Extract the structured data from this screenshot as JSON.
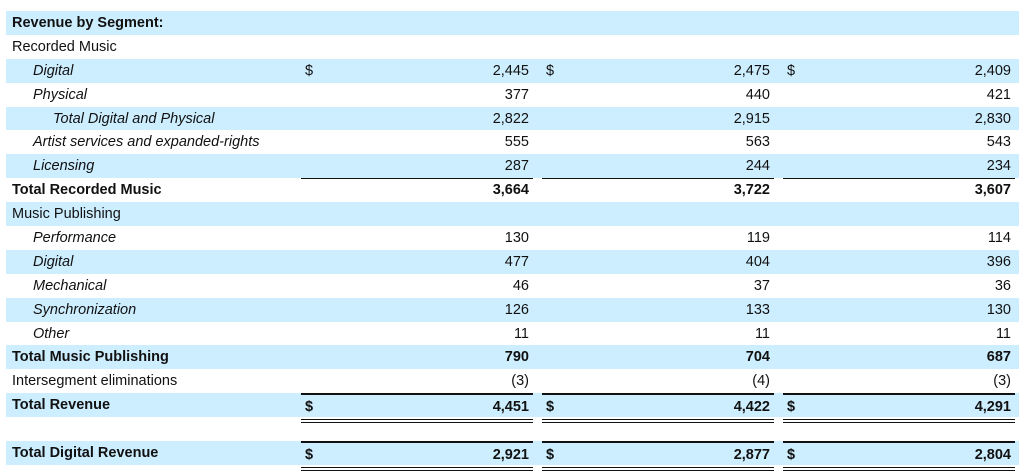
{
  "table": {
    "rows": [
      {
        "label": "Revenue by Segment:",
        "indent": 0,
        "bold": true,
        "shaded": true,
        "values": [
          "",
          "",
          ""
        ],
        "currency": false
      },
      {
        "label": "Recorded Music",
        "indent": 0,
        "bold": false,
        "shaded": false,
        "values": [
          "",
          "",
          ""
        ],
        "currency": false
      },
      {
        "label": "Digital",
        "indent": 1,
        "bold": false,
        "shaded": true,
        "values": [
          "2,445",
          "2,475",
          "2,409"
        ],
        "currency": true
      },
      {
        "label": "Physical",
        "indent": 1,
        "bold": false,
        "shaded": false,
        "values": [
          "377",
          "440",
          "421"
        ],
        "currency": false,
        "rule": "bottom"
      },
      {
        "label": "Total Digital and Physical",
        "indent": 2,
        "bold": false,
        "shaded": true,
        "values": [
          "2,822",
          "2,915",
          "2,830"
        ],
        "currency": false
      },
      {
        "label": "Artist services and expanded-rights",
        "indent": 1,
        "bold": false,
        "shaded": false,
        "values": [
          "555",
          "563",
          "543"
        ],
        "currency": false
      },
      {
        "label": "Licensing",
        "indent": 1,
        "bold": false,
        "shaded": true,
        "values": [
          "287",
          "244",
          "234"
        ],
        "currency": false,
        "rule": "bottom"
      },
      {
        "label": "Total Recorded Music",
        "indent": 0,
        "bold": true,
        "shaded": false,
        "values": [
          "3,664",
          "3,722",
          "3,607"
        ],
        "currency": false
      },
      {
        "label": "Music Publishing",
        "indent": 0,
        "bold": false,
        "shaded": true,
        "values": [
          "",
          "",
          ""
        ],
        "currency": false
      },
      {
        "label": "Performance",
        "indent": 1,
        "bold": false,
        "shaded": false,
        "values": [
          "130",
          "119",
          "114"
        ],
        "currency": false
      },
      {
        "label": "Digital",
        "indent": 1,
        "bold": false,
        "shaded": true,
        "values": [
          "477",
          "404",
          "396"
        ],
        "currency": false
      },
      {
        "label": "Mechanical",
        "indent": 1,
        "bold": false,
        "shaded": false,
        "values": [
          "46",
          "37",
          "36"
        ],
        "currency": false
      },
      {
        "label": "Synchronization",
        "indent": 1,
        "bold": false,
        "shaded": true,
        "values": [
          "126",
          "133",
          "130"
        ],
        "currency": false
      },
      {
        "label": "Other",
        "indent": 1,
        "bold": false,
        "shaded": false,
        "values": [
          "11",
          "11",
          "11"
        ],
        "currency": false,
        "rule": "bottom"
      },
      {
        "label": "Total Music Publishing",
        "indent": 0,
        "bold": true,
        "shaded": true,
        "values": [
          "790",
          "704",
          "687"
        ],
        "currency": false
      },
      {
        "label": "Intersegment eliminations",
        "indent": 0,
        "bold": false,
        "shaded": false,
        "values": [
          "(3)",
          "(4)",
          "(3)"
        ],
        "currency": false,
        "rule": "bottom"
      },
      {
        "label": "Total Revenue",
        "indent": 0,
        "bold": true,
        "shaded": true,
        "values": [
          "4,451",
          "4,422",
          "4,291"
        ],
        "currency": true,
        "rule": "double"
      },
      {
        "label": "",
        "indent": 0,
        "bold": false,
        "shaded": false,
        "values": [
          "",
          "",
          ""
        ],
        "currency": false
      },
      {
        "label": "Total Digital Revenue",
        "indent": 0,
        "bold": true,
        "shaded": true,
        "values": [
          "2,921",
          "2,877",
          "2,804"
        ],
        "currency": true,
        "rule": "double"
      }
    ],
    "currency_symbol": "$"
  }
}
